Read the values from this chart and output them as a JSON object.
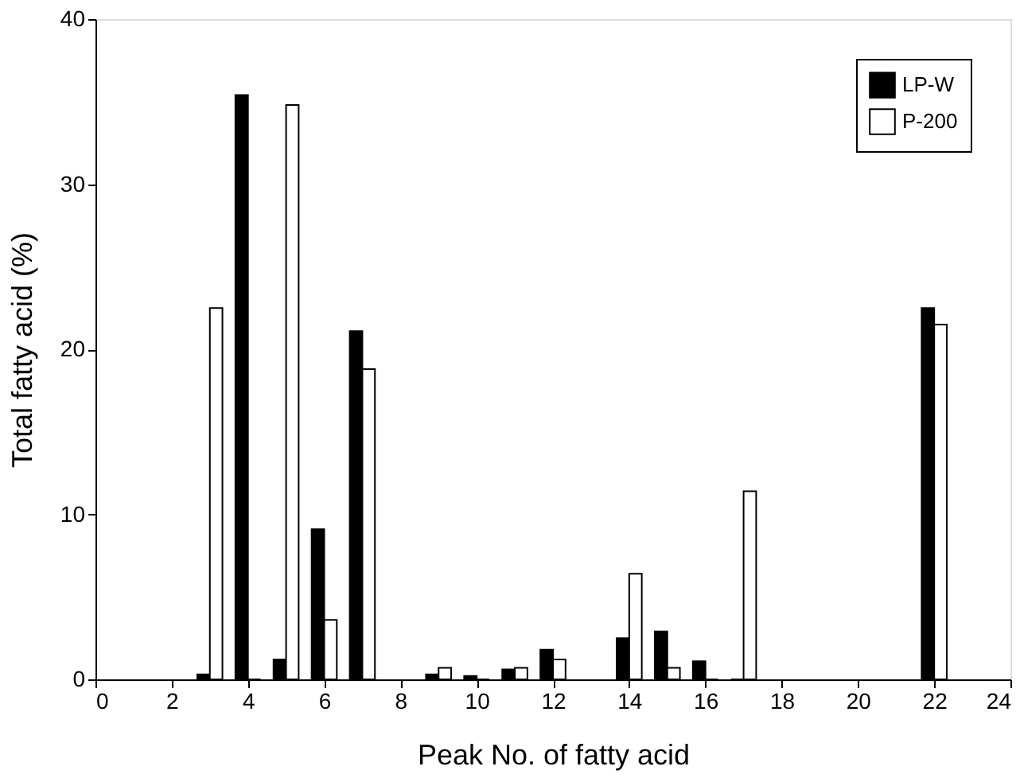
{
  "chart_data": {
    "type": "bar",
    "xlabel": "Peak No. of fatty acid",
    "ylabel": "Total fatty acid  (%)",
    "x": [
      3,
      4,
      5,
      6,
      7,
      9,
      10,
      11,
      12,
      14,
      15,
      16,
      17,
      22
    ],
    "series": [
      {
        "name": "LP-W",
        "color": "#000000",
        "values": [
          0.3,
          35.4,
          1.2,
          9.1,
          21.1,
          0.3,
          0.2,
          0.6,
          1.8,
          2.5,
          2.9,
          1.1,
          0,
          22.5
        ]
      },
      {
        "name": "P-200",
        "color": "#ffffff",
        "values": [
          22.5,
          0,
          34.8,
          3.6,
          18.8,
          0.7,
          0,
          0.7,
          1.2,
          6.4,
          0.7,
          0,
          11.4,
          21.5
        ]
      }
    ],
    "xlim": [
      0,
      24
    ],
    "xticks": [
      0,
      2,
      4,
      6,
      8,
      10,
      12,
      14,
      16,
      18,
      20,
      22,
      24
    ],
    "ylim": [
      0,
      40
    ],
    "yticks": [
      0,
      10,
      20,
      30,
      40
    ],
    "grid": false,
    "legend": "top right"
  }
}
